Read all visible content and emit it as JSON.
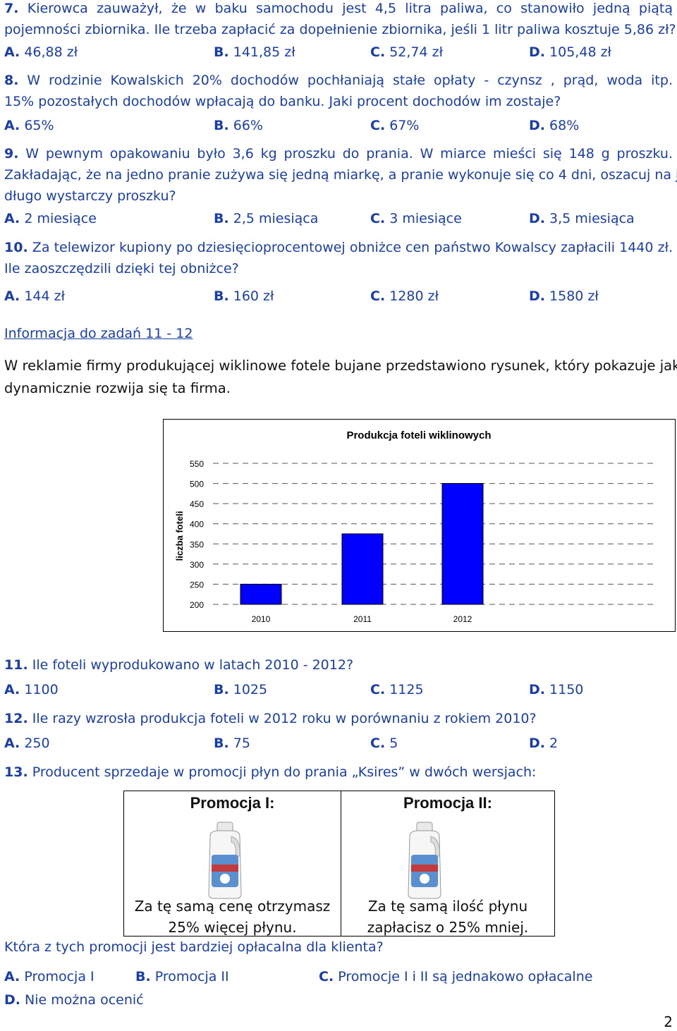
{
  "q7": {
    "number": "7.",
    "line1": "Kierowca zauważył, że w baku samochodu jest 4,5 litra paliwa, co stanowiło jedną piątą",
    "line2": "pojemności zbiornika. Ile trzeba zapłacić za dopełnienie zbiornika, jeśli 1 litr paliwa kosztuje 5,86 zł?",
    "options": [
      {
        "letter": "A.",
        "text": "46,88 zł"
      },
      {
        "letter": "B.",
        "text": "141,85 zł"
      },
      {
        "letter": "C.",
        "text": "52,74 zł"
      },
      {
        "letter": "D.",
        "text": "105,48 zł"
      }
    ]
  },
  "q8": {
    "number": "8.",
    "line1": "W rodzinie Kowalskich 20% dochodów pochłaniają stałe opłaty - czynsz , prąd, woda itp.",
    "line2": "15% pozostałych dochodów wpłacają do banku. Jaki procent dochodów im zostaje?",
    "options": [
      {
        "letter": "A.",
        "text": "65%"
      },
      {
        "letter": "B.",
        "text": "66%"
      },
      {
        "letter": "C.",
        "text": "67%"
      },
      {
        "letter": "D.",
        "text": "68%"
      }
    ]
  },
  "q9": {
    "number": "9.",
    "line1": "W pewnym opakowaniu było 3,6 kg proszku do prania. W miarce mieści się 148 g proszku.",
    "line2": "Zakładając, że na jedno pranie zużywa się jedną miarkę, a pranie wykonuje się co 4 dni, oszacuj na jak",
    "line3": "długo wystarczy proszku?",
    "options": [
      {
        "letter": "A.",
        "text": "2 miesiące"
      },
      {
        "letter": "B.",
        "text": "2,5 miesiąca"
      },
      {
        "letter": "C.",
        "text": "3 miesiące"
      },
      {
        "letter": "D.",
        "text": "3,5 miesiąca"
      }
    ]
  },
  "q10": {
    "number": "10.",
    "line1": "Za telewizor kupiony po dziesięcioprocentowej obniżce cen państwo Kowalscy zapłacili 1440 zł.",
    "line2": "Ile zaoszczędzili dzięki tej obniżce?",
    "options": [
      {
        "letter": "A.",
        "text": "144 zł"
      },
      {
        "letter": "B.",
        "text": "160 zł"
      },
      {
        "letter": "C.",
        "text": "1280 zł"
      },
      {
        "letter": "D.",
        "text": "1580 zł"
      }
    ]
  },
  "info": {
    "heading": "Informacja do zadań 11 - 12",
    "line1": "W reklamie firmy produkującej wiklinowe fotele bujane przedstawiono rysunek, który pokazuje jak",
    "line2": "dynamicznie rozwija się ta firma."
  },
  "chart_data": {
    "type": "bar",
    "title": "Produkcja foteli wiklinowych",
    "ylabel": "liczba foteli",
    "xlabel": "",
    "categories": [
      "2010",
      "2011",
      "2012"
    ],
    "values": [
      250,
      375,
      500
    ],
    "ylim": [
      200,
      550
    ],
    "yticks": [
      550,
      500,
      450,
      400,
      350,
      300,
      250,
      200
    ],
    "bar_color": "#0000ff",
    "grid": "dashed horizontal",
    "legend": "none"
  },
  "q11": {
    "number": "11.",
    "text": "Ile foteli wyprodukowano w latach 2010 - 2012?",
    "options": [
      {
        "letter": "A.",
        "text": "1100"
      },
      {
        "letter": "B.",
        "text": "1025"
      },
      {
        "letter": "C.",
        "text": "1125"
      },
      {
        "letter": "D.",
        "text": "1150"
      }
    ]
  },
  "q12": {
    "number": "12.",
    "text": "Ile razy wzrosła produkcja foteli w 2012 roku w porównaniu z rokiem 2010?",
    "options": [
      {
        "letter": "A.",
        "text": "250"
      },
      {
        "letter": "B.",
        "text": "75"
      },
      {
        "letter": "C.",
        "text": "5"
      },
      {
        "letter": "D.",
        "text": "2"
      }
    ]
  },
  "q13": {
    "number": "13.",
    "text": "Producent sprzedaje w promocji płyn do prania „Ksires” w dwóch wersjach:",
    "promo1": {
      "title": "Promocja I:",
      "line1": "Za tę samą cenę otrzymasz",
      "line2": "25% więcej płynu."
    },
    "promo2": {
      "title": "Promocja II:",
      "line1": "Za tę samą ilość płynu",
      "line2": "zapłacisz o 25% mniej."
    },
    "question": "Która z tych promocji jest bardziej opłacalna dla klienta?",
    "options": [
      {
        "letter": "A.",
        "text": "Promocja I"
      },
      {
        "letter": "B.",
        "text": "Promocja II"
      },
      {
        "letter": "C.",
        "text": "Promocje I i II są jednakowo opłacalne"
      },
      {
        "letter": "D.",
        "text": "Nie można ocenić"
      }
    ]
  },
  "page_number": "2"
}
